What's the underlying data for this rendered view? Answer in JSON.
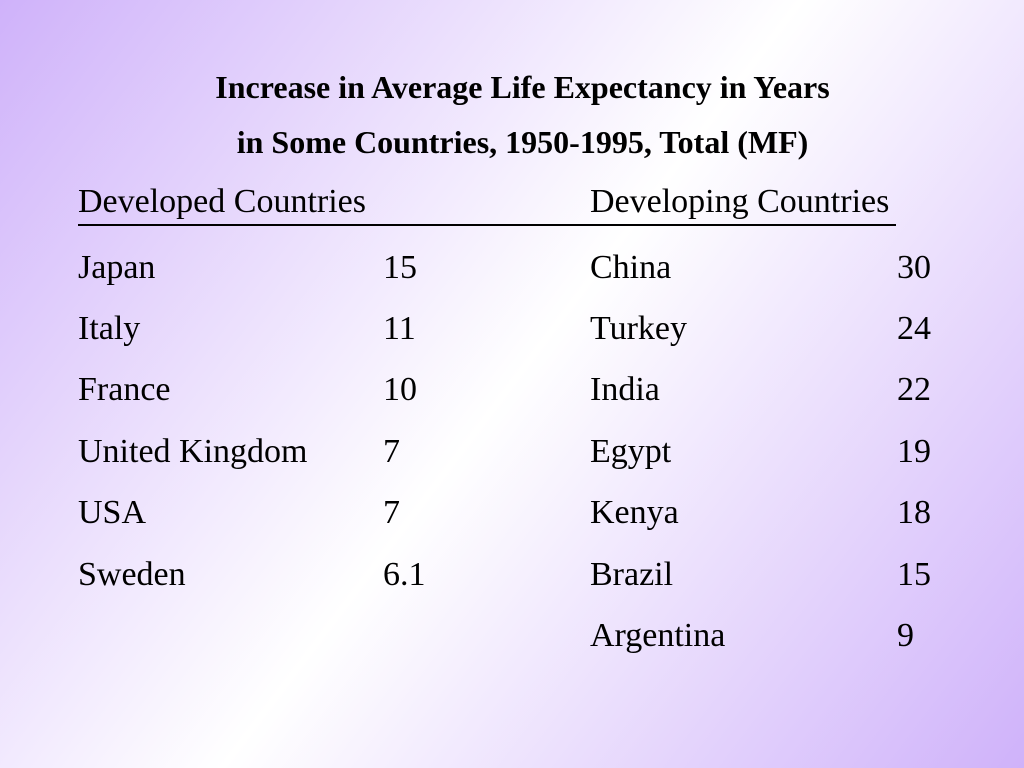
{
  "slide": {
    "title_line1": "Increase in Average Life Expectancy in Years",
    "title_line2": "in Some Countries, 1950-1995, Total (MF)",
    "developed": {
      "header": "Developed Countries",
      "rows": [
        {
          "country": "Japan",
          "value": "15"
        },
        {
          "country": "Italy",
          "value": "11"
        },
        {
          "country": "France",
          "value": "10"
        },
        {
          "country": "United Kingdom",
          "value": "7"
        },
        {
          "country": "USA",
          "value": "7"
        },
        {
          "country": "Sweden",
          "value": "6.1"
        }
      ]
    },
    "developing": {
      "header": "Developing Countries",
      "rows": [
        {
          "country": "China",
          "value": "30"
        },
        {
          "country": "Turkey",
          "value": "24"
        },
        {
          "country": "India",
          "value": "22"
        },
        {
          "country": "Egypt",
          "value": "19"
        },
        {
          "country": "Kenya",
          "value": "18"
        },
        {
          "country": "Brazil",
          "value": "15"
        },
        {
          "country": "Argentina",
          "value": "9"
        }
      ]
    }
  },
  "colors": {
    "background_purple": "#cfb2fa",
    "background_white": "#ffffff",
    "text": "#000000"
  },
  "chart_data": {
    "type": "table",
    "title": "Increase in Average Life Expectancy in Years in Some Countries, 1950-1995, Total (MF)",
    "unit": "years",
    "groups": [
      {
        "name": "Developed Countries",
        "categories": [
          "Japan",
          "Italy",
          "France",
          "United Kingdom",
          "USA",
          "Sweden"
        ],
        "values": [
          15,
          11,
          10,
          7,
          7,
          6.1
        ]
      },
      {
        "name": "Developing Countries",
        "categories": [
          "China",
          "Turkey",
          "India",
          "Egypt",
          "Kenya",
          "Brazil",
          "Argentina"
        ],
        "values": [
          30,
          24,
          22,
          19,
          18,
          15,
          9
        ]
      }
    ]
  }
}
